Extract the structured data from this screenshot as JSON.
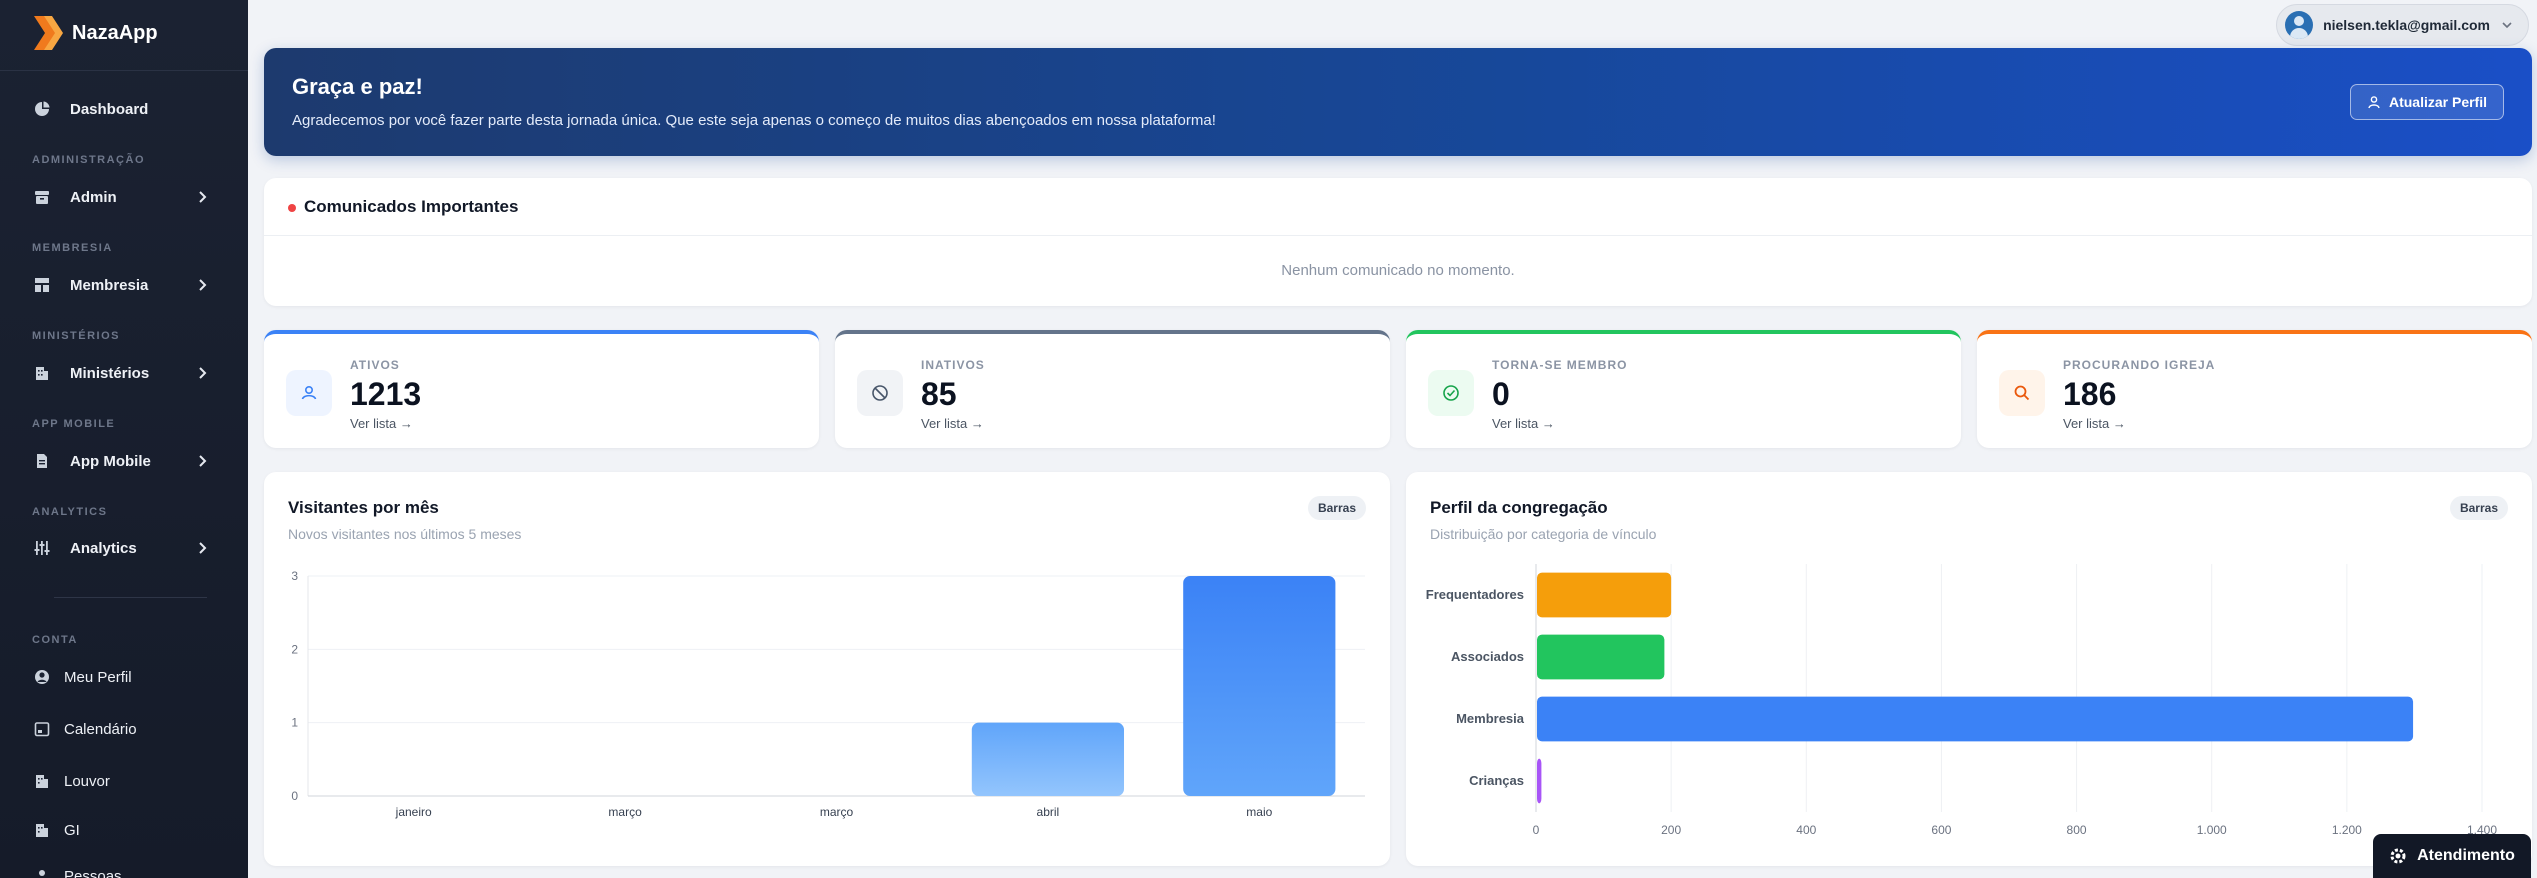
{
  "app": {
    "name": "NazaApp"
  },
  "sidebar": {
    "dashboard": "Dashboard",
    "sections": {
      "administracao": "ADMINISTRAÇÃO",
      "membresia": "MEMBRESIA",
      "ministerios": "MINISTÉRIOS",
      "app_mobile": "APP MOBILE",
      "analytics": "ANALYTICS",
      "conta": "CONTA"
    },
    "items": {
      "admin": "Admin",
      "membresia": "Membresia",
      "ministerios": "Ministérios",
      "app_mobile": "App Mobile",
      "analytics": "Analytics"
    },
    "conta_items": [
      "Meu Perfil",
      "Calendário",
      "Louvor",
      "GI",
      "Pessoas"
    ]
  },
  "topbar": {
    "user_email": "nielsen.tekla@gmail.com"
  },
  "hero": {
    "title": "Graça e paz!",
    "subtitle": "Agradecemos por você fazer parte desta jornada única. Que este seja apenas o começo de muitos dias abençoados em nossa plataforma!",
    "button": "Atualizar Perfil"
  },
  "comunicados": {
    "title": "Comunicados Importantes",
    "empty": "Nenhum comunicado no momento."
  },
  "stats": [
    {
      "label": "ATIVOS",
      "value": "1213",
      "link": "Ver lista →",
      "color": "#3b82f6",
      "icon": "users-icon"
    },
    {
      "label": "INATIVOS",
      "value": "85",
      "link": "Ver lista →",
      "color": "#64748b",
      "icon": "block-icon"
    },
    {
      "label": "TORNA-SE MEMBRO",
      "value": "0",
      "link": "Ver lista →",
      "color": "#22c55e",
      "icon": "check-circle-icon"
    },
    {
      "label": "PROCURANDO IGREJA",
      "value": "186",
      "link": "Ver lista →",
      "color": "#f97316",
      "icon": "search-icon"
    }
  ],
  "visitantes": {
    "title": "Visitantes por mês",
    "subtitle": "Novos visitantes nos últimos 5 meses",
    "badge": "Barras"
  },
  "perfil": {
    "title": "Perfil da congregação",
    "subtitle": "Distribuição por categoria de vínculo",
    "badge": "Barras"
  },
  "atendimento": "Atendimento",
  "chart_data": [
    {
      "type": "bar",
      "title": "Visitantes por mês",
      "categories": [
        "janeiro",
        "março",
        "março",
        "abril",
        "maio"
      ],
      "values": [
        0,
        0,
        0,
        1,
        3
      ],
      "ylim": [
        0,
        3
      ],
      "yticks": [
        0,
        1,
        2,
        3
      ],
      "color": "#3b82f6",
      "grid": true
    },
    {
      "type": "bar",
      "orientation": "horizontal",
      "title": "Perfil da congregação",
      "categories": [
        "Frequentadores",
        "Associados",
        "Membresia",
        "Crianças"
      ],
      "values": [
        200,
        190,
        1298,
        8
      ],
      "colors": [
        "#f59e0b",
        "#22c55e",
        "#3b82f6",
        "#a855f7"
      ],
      "xlim": [
        0,
        1400
      ],
      "xticks": [
        "0",
        "200",
        "400",
        "600",
        "800",
        "1.000",
        "1.200",
        "1.400"
      ],
      "grid": true
    }
  ]
}
